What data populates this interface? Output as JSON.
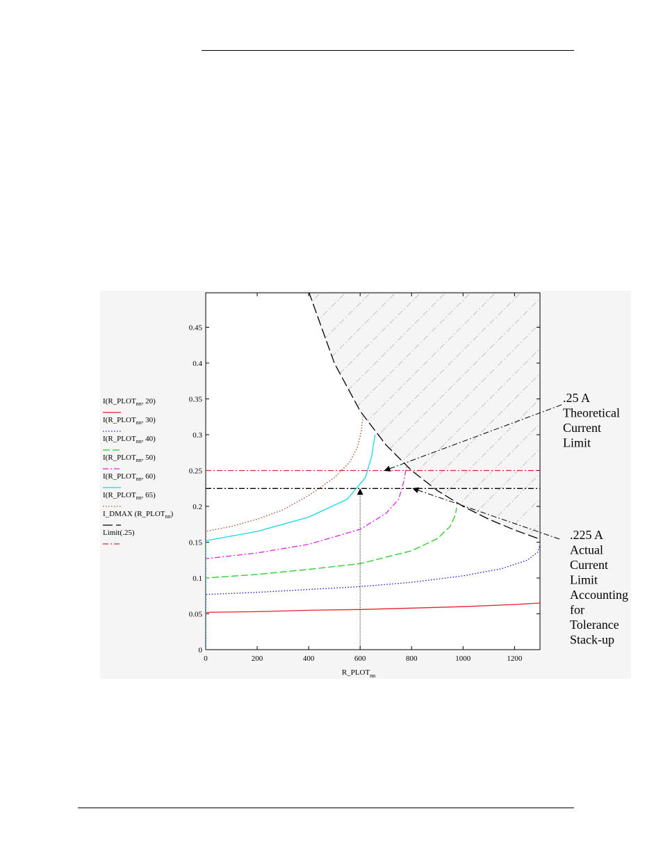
{
  "chart_data": {
    "type": "line",
    "xlabel": "R_PLOT",
    "xlabel_sub": "nn",
    "xlim": [
      0,
      1300
    ],
    "ylim": [
      0,
      0.5
    ],
    "x_ticks": [
      0,
      200,
      400,
      600,
      800,
      1000,
      1200
    ],
    "y_ticks": [
      0,
      0.05,
      0.1,
      0.15,
      0.2,
      0.25,
      0.3,
      0.35,
      0.4,
      0.45
    ],
    "y_tick_labels": [
      "0",
      "0.05",
      "0.1",
      "0.15",
      "0.2",
      "0.25",
      "0.3",
      "0.35",
      "0.4",
      "0.45"
    ],
    "hatched_region": "above I_DMAX curve",
    "series": [
      {
        "name": "I(R_PLOTnn, 20)",
        "legend": {
          "pre": "I(R_PLOT",
          "sub": "nn",
          "post": ", 20)"
        },
        "color": "#e8202a",
        "style": "solid",
        "x": [
          0,
          0,
          200,
          400,
          600,
          800,
          1000,
          1200,
          1300
        ],
        "y": [
          0,
          0.052,
          0.053,
          0.055,
          0.056,
          0.058,
          0.06,
          0.063,
          0.065
        ]
      },
      {
        "name": "I(R_PLOTnn, 30)",
        "legend": {
          "pre": "I(R_PLOT",
          "sub": "nn",
          "post": ", 30)"
        },
        "color": "#1a1ad0",
        "style": "dotted",
        "x": [
          0,
          0,
          200,
          400,
          600,
          800,
          1000,
          1150,
          1250,
          1290,
          1300
        ],
        "y": [
          0,
          0.077,
          0.08,
          0.084,
          0.088,
          0.094,
          0.103,
          0.113,
          0.125,
          0.136,
          0.148
        ]
      },
      {
        "name": "I(R_PLOTnn, 40)",
        "legend": {
          "pre": "I(R_PLOT",
          "sub": "nn",
          "post": ", 40)"
        },
        "color": "#22cc22",
        "style": "dashed",
        "x": [
          0,
          0,
          200,
          400,
          600,
          800,
          900,
          950,
          970,
          975
        ],
        "y": [
          0,
          0.1,
          0.105,
          0.112,
          0.12,
          0.138,
          0.155,
          0.172,
          0.188,
          0.198
        ]
      },
      {
        "name": "I(R_PLOTnn, 50)",
        "legend": {
          "pre": "I(R_PLOT",
          "sub": "nn",
          "post": ", 50)"
        },
        "color": "#e020e0",
        "style": "dashdot",
        "x": [
          0,
          0,
          200,
          400,
          600,
          700,
          750,
          770,
          780
        ],
        "y": [
          0,
          0.127,
          0.135,
          0.147,
          0.168,
          0.19,
          0.21,
          0.235,
          0.255
        ]
      },
      {
        "name": "I(R_PLOTnn, 60)",
        "legend": {
          "pre": "I(R_PLOT",
          "sub": "nn",
          "post": ", 60)"
        },
        "color": "#10d8e8",
        "style": "solid",
        "x": [
          0,
          0,
          200,
          400,
          550,
          620,
          645,
          658
        ],
        "y": [
          0,
          0.152,
          0.165,
          0.185,
          0.21,
          0.24,
          0.27,
          0.3
        ]
      },
      {
        "name": "I(R_PLOTnn, 65)",
        "legend": {
          "pre": "I(R_PLOT",
          "sub": "nn",
          "post": ", 65)"
        },
        "color": "#a0522d",
        "style": "dotted",
        "x": [
          0,
          0,
          100,
          200,
          300,
          400,
          500,
          560,
          590,
          605,
          610
        ],
        "y": [
          0,
          0.165,
          0.172,
          0.182,
          0.195,
          0.215,
          0.24,
          0.262,
          0.283,
          0.305,
          0.325
        ]
      },
      {
        "name": "I_DMAX(R_PLOTnn)",
        "legend": {
          "pre": "I_DMAX (R_PLOT",
          "sub": "nn",
          "post": ")"
        },
        "color": "#000000",
        "style": "longdash",
        "x": [
          400,
          500,
          600,
          700,
          800,
          900,
          1000,
          1100,
          1200,
          1300
        ],
        "y": [
          0.5,
          0.4,
          0.333,
          0.286,
          0.25,
          0.222,
          0.2,
          0.182,
          0.167,
          0.154
        ]
      },
      {
        "name": "Limit(.25)",
        "legend": {
          "pre": "Limit(.25)",
          "sub": "",
          "post": ""
        },
        "color": "#e8202a",
        "style": "dashdot",
        "x": [
          0,
          1300
        ],
        "y": [
          0.25,
          0.25
        ]
      },
      {
        "name": "I_DMAX line 0.225",
        "legend": null,
        "color": "#000000",
        "style": "dashdot",
        "x": [
          0,
          1300
        ],
        "y": [
          0.225,
          0.225
        ]
      }
    ],
    "vertical_marker": {
      "x": 600,
      "y_from": 0,
      "y_to": 0.225
    },
    "annotations": [
      {
        "lines": [
          ".25 A",
          "Theoretical",
          "Current",
          "Limit"
        ],
        "target_x": 690,
        "target_y": 0.25
      },
      {
        "lines": [
          ".225 A",
          "Actual",
          "Current",
          "Limit",
          "Accounting",
          "for",
          "Tolerance",
          "Stack-up"
        ],
        "target_x": 800,
        "target_y": 0.225
      }
    ]
  }
}
